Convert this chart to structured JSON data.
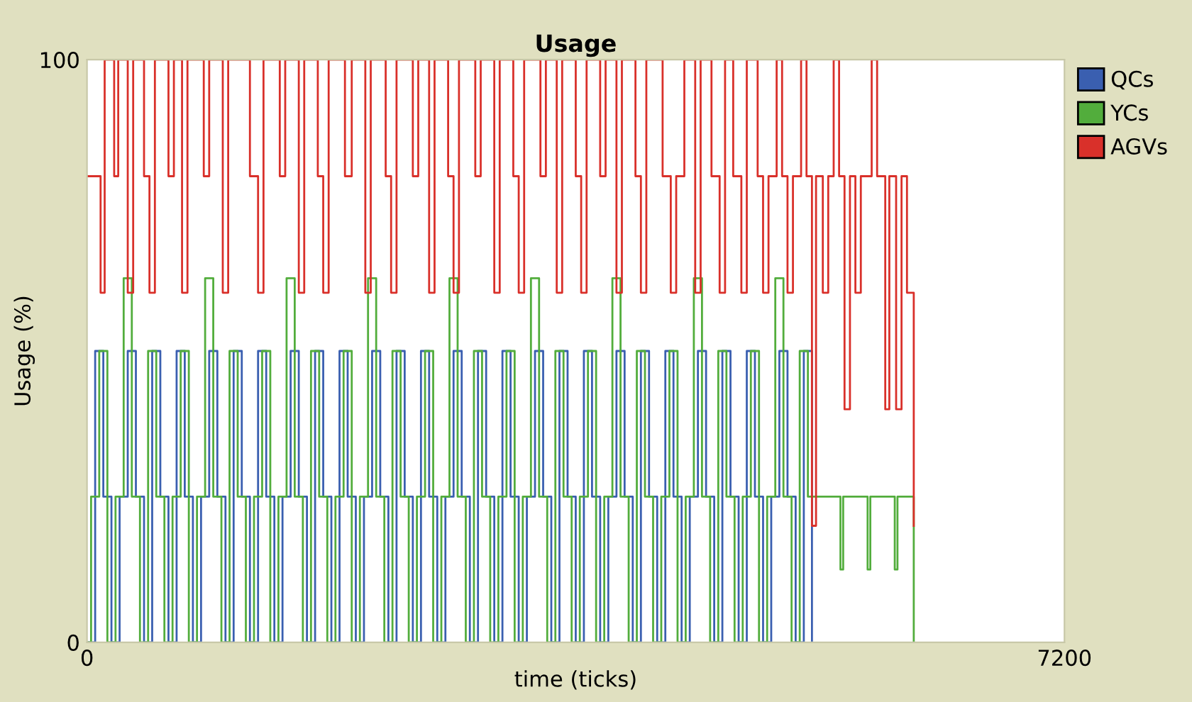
{
  "chart_data": {
    "type": "step",
    "title": "Usage",
    "xlabel": "time (ticks)",
    "ylabel": "Usage (%)",
    "xlim": [
      0,
      7200
    ],
    "ylim": [
      0,
      100
    ],
    "xticks": [
      0,
      7200
    ],
    "yticks": [
      0,
      100
    ],
    "grid": false,
    "legend": "right",
    "marker": "none",
    "line_style": "solid",
    "series": [
      {
        "name": "QCs",
        "color": "#3a5fb0",
        "x": [
          0,
          60,
          120,
          180,
          240,
          300,
          360,
          420,
          480,
          540,
          600,
          660,
          720,
          780,
          840,
          900,
          960,
          1020,
          1080,
          1140,
          1200,
          1260,
          1320,
          1380,
          1440,
          1500,
          1560,
          1620,
          1680,
          1740,
          1800,
          1860,
          1920,
          1980,
          2040,
          2100,
          2160,
          2220,
          2280,
          2340,
          2400,
          2460,
          2520,
          2580,
          2640,
          2700,
          2760,
          2820,
          2880,
          2940,
          3000,
          3060,
          3120,
          3180,
          3240,
          3300,
          3360,
          3420,
          3480,
          3540,
          3600,
          3660,
          3720,
          3780,
          3840,
          3900,
          3960,
          4020,
          4080,
          4140,
          4200,
          4260,
          4320,
          4380,
          4440,
          4500,
          4560,
          4620,
          4680,
          4740,
          4800,
          4860,
          4920,
          4980,
          5040,
          5100,
          5160,
          5220,
          5280,
          5340
        ],
        "values": [
          0,
          50,
          25,
          0,
          25,
          50,
          25,
          0,
          50,
          25,
          0,
          50,
          25,
          0,
          25,
          50,
          25,
          0,
          50,
          25,
          0,
          50,
          25,
          0,
          25,
          50,
          25,
          0,
          50,
          25,
          0,
          50,
          25,
          0,
          25,
          50,
          25,
          0,
          50,
          25,
          0,
          50,
          25,
          0,
          25,
          50,
          25,
          0,
          50,
          25,
          0,
          50,
          25,
          0,
          25,
          50,
          25,
          0,
          50,
          25,
          0,
          50,
          25,
          0,
          25,
          50,
          25,
          0,
          50,
          25,
          0,
          50,
          25,
          0,
          25,
          50,
          25,
          0,
          50,
          25,
          0,
          50,
          25,
          0,
          25,
          50,
          25,
          0,
          50,
          0
        ]
      },
      {
        "name": "YCs",
        "color": "#52ad3c",
        "x": [
          0,
          30,
          90,
          150,
          210,
          270,
          330,
          390,
          450,
          510,
          570,
          630,
          690,
          750,
          810,
          870,
          930,
          990,
          1050,
          1110,
          1170,
          1230,
          1290,
          1350,
          1410,
          1470,
          1530,
          1590,
          1650,
          1710,
          1770,
          1830,
          1890,
          1950,
          2010,
          2070,
          2130,
          2190,
          2250,
          2310,
          2370,
          2430,
          2490,
          2550,
          2610,
          2670,
          2730,
          2790,
          2850,
          2910,
          2970,
          3030,
          3090,
          3150,
          3210,
          3270,
          3330,
          3390,
          3450,
          3510,
          3570,
          3630,
          3690,
          3750,
          3810,
          3870,
          3930,
          3990,
          4050,
          4110,
          4170,
          4230,
          4290,
          4350,
          4410,
          4470,
          4530,
          4590,
          4650,
          4710,
          4770,
          4830,
          4890,
          4950,
          5010,
          5070,
          5130,
          5190,
          5250,
          5310,
          5550,
          5570,
          5750,
          5770,
          5950,
          5970,
          6090
        ],
        "values": [
          0,
          25,
          50,
          0,
          25,
          62.5,
          25,
          0,
          50,
          25,
          0,
          25,
          50,
          0,
          25,
          62.5,
          25,
          0,
          50,
          25,
          0,
          25,
          50,
          0,
          25,
          62.5,
          25,
          0,
          50,
          25,
          0,
          25,
          50,
          0,
          25,
          62.5,
          25,
          0,
          50,
          25,
          0,
          25,
          50,
          0,
          25,
          62.5,
          25,
          0,
          50,
          25,
          0,
          25,
          50,
          0,
          25,
          62.5,
          25,
          0,
          50,
          25,
          0,
          25,
          50,
          0,
          25,
          62.5,
          25,
          0,
          50,
          25,
          0,
          25,
          50,
          0,
          25,
          62.5,
          25,
          0,
          50,
          25,
          0,
          25,
          50,
          0,
          25,
          62.5,
          25,
          0,
          50,
          25,
          12.5,
          25,
          12.5,
          25,
          12.5,
          25,
          0
        ]
      },
      {
        "name": "AGVs",
        "color": "#d9302a",
        "x": [
          0,
          100,
          130,
          200,
          230,
          300,
          340,
          420,
          460,
          500,
          600,
          640,
          700,
          740,
          860,
          900,
          1000,
          1040,
          1200,
          1260,
          1300,
          1420,
          1460,
          1560,
          1600,
          1700,
          1740,
          1780,
          1900,
          1950,
          2050,
          2090,
          2200,
          2240,
          2280,
          2400,
          2440,
          2520,
          2560,
          2660,
          2700,
          2740,
          2860,
          2900,
          3000,
          3040,
          3140,
          3180,
          3220,
          3340,
          3380,
          3460,
          3500,
          3600,
          3640,
          3680,
          3780,
          3820,
          3900,
          3940,
          4040,
          4080,
          4120,
          4240,
          4300,
          4340,
          4400,
          4480,
          4520,
          4600,
          4660,
          4700,
          4760,
          4820,
          4860,
          4940,
          4980,
          5020,
          5080,
          5120,
          5160,
          5200,
          5260,
          5300,
          5340,
          5370,
          5420,
          5460,
          5500,
          5540,
          5580,
          5620,
          5660,
          5700,
          5780,
          5820,
          5880,
          5910,
          5960,
          6000,
          6040,
          6090
        ],
        "values": [
          80,
          60,
          100,
          80,
          100,
          60,
          100,
          80,
          60,
          100,
          80,
          100,
          60,
          100,
          80,
          100,
          60,
          100,
          80,
          60,
          100,
          80,
          100,
          60,
          100,
          80,
          60,
          100,
          80,
          100,
          60,
          100,
          80,
          60,
          100,
          80,
          100,
          60,
          100,
          80,
          60,
          100,
          80,
          100,
          60,
          100,
          80,
          60,
          100,
          80,
          100,
          60,
          100,
          80,
          60,
          100,
          80,
          100,
          60,
          100,
          80,
          60,
          100,
          80,
          60,
          80,
          100,
          60,
          100,
          80,
          60,
          100,
          80,
          60,
          100,
          80,
          60,
          80,
          100,
          80,
          60,
          80,
          100,
          80,
          20,
          80,
          60,
          80,
          100,
          80,
          40,
          80,
          60,
          80,
          100,
          80,
          40,
          80,
          40,
          80,
          60,
          20
        ]
      }
    ]
  }
}
